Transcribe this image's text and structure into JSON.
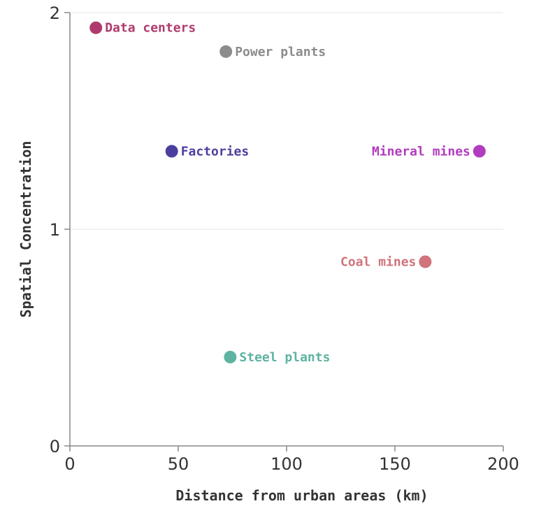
{
  "chart_data": {
    "type": "scatter",
    "title": "",
    "xlabel": "Distance from urban areas (km)",
    "ylabel": "Spatial Concentration",
    "xlim": [
      0,
      200
    ],
    "ylim": [
      0,
      2
    ],
    "x_ticks": [
      "0",
      "50",
      "100",
      "150",
      "200"
    ],
    "y_ticks": [
      "0",
      "1",
      "2"
    ],
    "grid": "horizontal",
    "points": [
      {
        "label": "Data centers",
        "x": 12,
        "y": 1.93,
        "color": "#b03a6e",
        "label_side": "right"
      },
      {
        "label": "Power plants",
        "x": 72,
        "y": 1.82,
        "color": "#8c8c8c",
        "label_side": "right"
      },
      {
        "label": "Factories",
        "x": 47,
        "y": 1.36,
        "color": "#4b3f9e",
        "label_side": "right"
      },
      {
        "label": "Mineral mines",
        "x": 189,
        "y": 1.36,
        "color": "#b23cbf",
        "label_side": "left"
      },
      {
        "label": "Coal mines",
        "x": 164,
        "y": 0.85,
        "color": "#d0737c",
        "label_side": "left"
      },
      {
        "label": "Steel plants",
        "x": 74,
        "y": 0.41,
        "color": "#5fb3a1",
        "label_side": "right"
      }
    ]
  }
}
